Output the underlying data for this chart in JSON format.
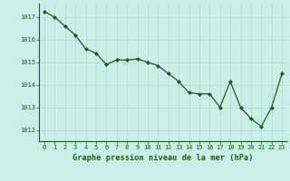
{
  "x": [
    0,
    1,
    2,
    3,
    4,
    5,
    6,
    7,
    8,
    9,
    10,
    11,
    12,
    13,
    14,
    15,
    16,
    17,
    18,
    19,
    20,
    21,
    22,
    23
  ],
  "y": [
    1017.25,
    1017.0,
    1016.6,
    1016.2,
    1015.6,
    1015.4,
    1014.9,
    1015.1,
    1015.1,
    1015.15,
    1015.0,
    1014.85,
    1014.5,
    1014.15,
    1013.65,
    1013.6,
    1013.6,
    1013.0,
    1014.15,
    1013.0,
    1012.5,
    1012.15,
    1013.0,
    1014.5
  ],
  "line_color": "#1a5c1a",
  "marker_color": "#1a5c1a",
  "bg_color": "#caeee8",
  "grid_color": "#aed8d0",
  "xlabel": "Graphe pression niveau de la mer (hPa)",
  "xlabel_color": "#1a5c1a",
  "tick_color": "#1a5c1a",
  "spine_color": "#1a5c1a",
  "ylim": [
    1011.5,
    1017.6
  ],
  "yticks": [
    1012,
    1013,
    1014,
    1015,
    1016,
    1017
  ],
  "xticks": [
    0,
    1,
    2,
    3,
    4,
    5,
    6,
    7,
    8,
    9,
    10,
    11,
    12,
    13,
    14,
    15,
    16,
    17,
    18,
    19,
    20,
    21,
    22,
    23
  ],
  "tick_fontsize": 5.0,
  "xlabel_fontsize": 6.2,
  "marker_size": 2.0,
  "line_width": 0.9
}
